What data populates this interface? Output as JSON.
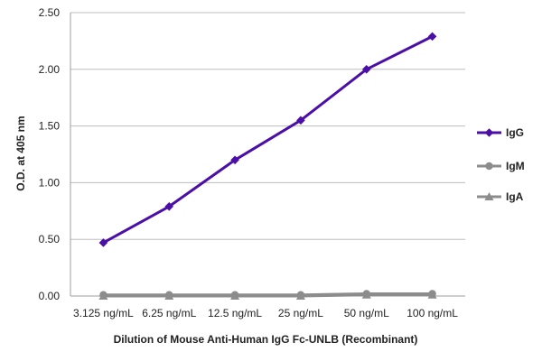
{
  "chart_data": {
    "type": "line",
    "title": "",
    "xlabel": "Dilution of Mouse Anti-Human IgG Fc-UNLB (Recombinant)",
    "ylabel": "O.D. at 405 nm",
    "categories": [
      "3.125 ng/mL",
      "6.25 ng/mL",
      "12.5 ng/mL",
      "25 ng/mL",
      "50 ng/mL",
      "100 ng/mL"
    ],
    "y_ticks": [
      "0.00",
      "0.50",
      "1.00",
      "1.50",
      "2.00",
      "2.50"
    ],
    "ylim": [
      0,
      2.5
    ],
    "grid": "horizontal",
    "legend_position": "right",
    "series": [
      {
        "name": "IgG",
        "marker": "diamond",
        "color": "#4b0fa8",
        "values": [
          0.47,
          0.79,
          1.2,
          1.55,
          2.0,
          2.29
        ]
      },
      {
        "name": "IgM",
        "marker": "circle",
        "color": "#8c8c8c",
        "values": [
          0.01,
          0.01,
          0.01,
          0.01,
          0.02,
          0.02
        ]
      },
      {
        "name": "IgA",
        "marker": "triangle",
        "color": "#8c8c8c",
        "values": [
          0.0,
          0.0,
          0.0,
          0.0,
          0.01,
          0.01
        ]
      }
    ]
  }
}
